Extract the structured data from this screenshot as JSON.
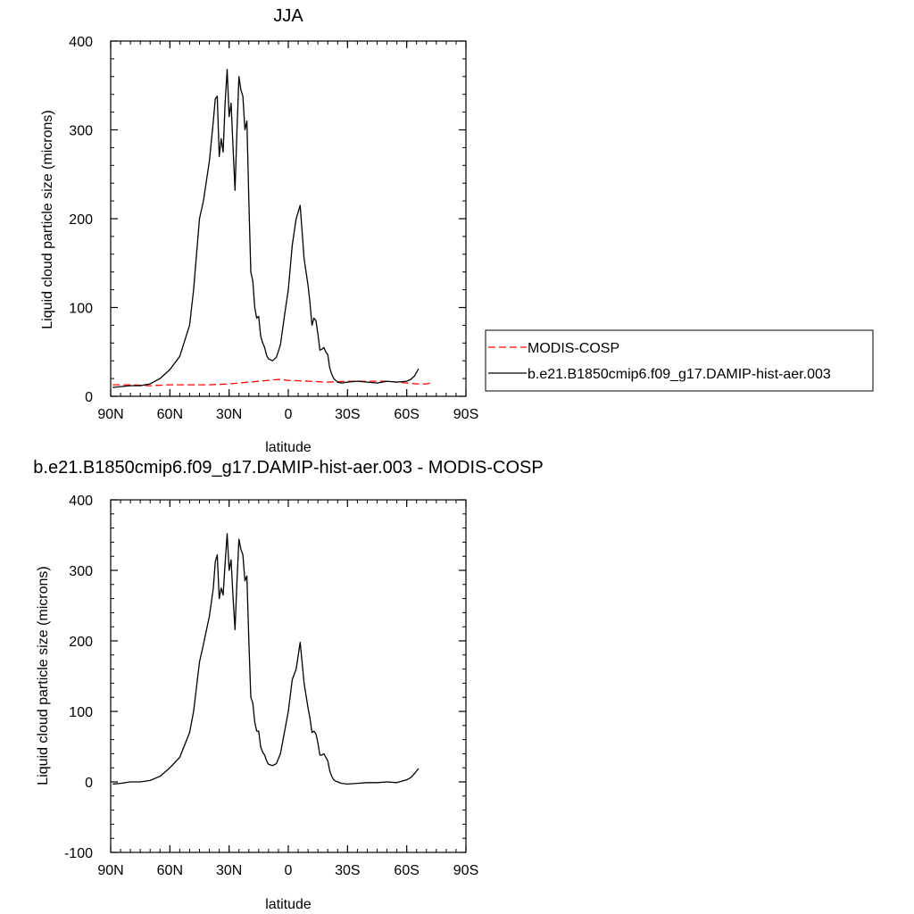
{
  "chart_data": [
    {
      "type": "line",
      "title": "JJA",
      "xlabel": "latitude",
      "ylabel": "Liquid cloud particle size (microns)",
      "xlim": [
        90,
        -90
      ],
      "ylim": [
        0,
        400
      ],
      "xticks": [
        90,
        60,
        30,
        0,
        -30,
        -60,
        -90
      ],
      "xtick_labels": [
        "90N",
        "60N",
        "30N",
        "0",
        "30S",
        "60S",
        "90S"
      ],
      "yticks": [
        0,
        100,
        200,
        300,
        400
      ],
      "ytick_labels": [
        "0",
        "100",
        "200",
        "300",
        "400"
      ],
      "grid": false,
      "legend": {
        "position": "right",
        "entries": [
          {
            "label": "MODIS-COSP",
            "color": "#ff0000",
            "style": "dashed"
          },
          {
            "label": "b.e21.B1850cmip6.f09_g17.DAMIP-hist-aer.003",
            "color": "#000000",
            "style": "solid"
          }
        ]
      },
      "series": [
        {
          "name": "MODIS-COSP",
          "color": "#ff0000",
          "style": "dashed",
          "x": [
            89,
            80,
            70,
            60,
            50,
            40,
            30,
            20,
            15,
            10,
            5,
            0,
            -10,
            -20,
            -30,
            -40,
            -50,
            -60,
            -65,
            -68,
            -70,
            -72
          ],
          "y": [
            13,
            13,
            12,
            13,
            13,
            13,
            14,
            16,
            17,
            18,
            19,
            18,
            17,
            16,
            17,
            17,
            17,
            15,
            14,
            14,
            14,
            15
          ]
        },
        {
          "name": "b.e21.B1850cmip6.f09_g17.DAMIP-hist-aer.003",
          "color": "#000000",
          "style": "solid",
          "x": [
            89,
            80,
            75,
            70,
            65,
            60,
            55,
            50,
            48,
            45,
            43,
            40,
            38,
            37,
            36,
            35,
            34,
            33,
            32,
            31,
            30,
            29,
            28,
            27,
            26,
            25,
            24,
            23,
            22,
            21,
            20,
            19,
            18,
            17,
            16,
            15,
            14,
            13,
            12,
            11,
            10,
            8,
            6,
            4,
            2,
            0,
            -2,
            -4,
            -6,
            -8,
            -10,
            -11,
            -12,
            -13,
            -14,
            -15,
            -16,
            -17,
            -18,
            -19,
            -20,
            -21,
            -22,
            -23,
            -24,
            -25,
            -27,
            -30,
            -35,
            -40,
            -45,
            -50,
            -55,
            -60,
            -62,
            -64,
            -66
          ],
          "y": [
            10,
            12,
            12,
            14,
            20,
            30,
            45,
            80,
            120,
            200,
            220,
            265,
            310,
            335,
            338,
            270,
            290,
            275,
            330,
            368,
            315,
            330,
            280,
            232,
            300,
            360,
            345,
            338,
            300,
            310,
            220,
            140,
            130,
            100,
            88,
            90,
            68,
            60,
            55,
            46,
            42,
            40,
            44,
            58,
            90,
            120,
            170,
            200,
            215,
            155,
            125,
            105,
            80,
            88,
            85,
            70,
            52,
            53,
            55,
            50,
            47,
            32,
            25,
            20,
            18,
            16,
            15,
            16,
            17,
            16,
            15,
            17,
            16,
            17,
            19,
            23,
            31
          ]
        }
      ]
    },
    {
      "type": "line",
      "title": "b.e21.B1850cmip6.f09_g17.DAMIP-hist-aer.003 - MODIS-COSP",
      "xlabel": "latitude",
      "ylabel": "Liquid cloud particle size (microns)",
      "xlim": [
        90,
        -90
      ],
      "ylim": [
        -100,
        400
      ],
      "xticks": [
        90,
        60,
        30,
        0,
        -30,
        -60,
        -90
      ],
      "xtick_labels": [
        "90N",
        "60N",
        "30N",
        "0",
        "30S",
        "60S",
        "90S"
      ],
      "yticks": [
        -100,
        0,
        100,
        200,
        300,
        400
      ],
      "ytick_labels": [
        "-100",
        "0",
        "100",
        "200",
        "300",
        "400"
      ],
      "grid": false,
      "series": [
        {
          "name": "",
          "color": "#000000",
          "style": "solid",
          "x": [
            89,
            85,
            80,
            75,
            70,
            65,
            60,
            55,
            50,
            48,
            45,
            43,
            40,
            38,
            37,
            36,
            35,
            34,
            33,
            32,
            31,
            30,
            29,
            28,
            27,
            26,
            25,
            24,
            23,
            22,
            21,
            20,
            19,
            18,
            17,
            16,
            15,
            14,
            13,
            12,
            11,
            10,
            8,
            6,
            4,
            2,
            0,
            -2,
            -4,
            -6,
            -8,
            -10,
            -11,
            -12,
            -13,
            -14,
            -15,
            -16,
            -17,
            -18,
            -19,
            -20,
            -21,
            -22,
            -23,
            -24,
            -25,
            -27,
            -30,
            -35,
            -40,
            -45,
            -50,
            -55,
            -60,
            -62,
            -64,
            -66
          ],
          "y": [
            -3,
            -2,
            0,
            0,
            2,
            8,
            20,
            35,
            70,
            100,
            170,
            195,
            235,
            275,
            312,
            322,
            260,
            275,
            265,
            310,
            352,
            300,
            315,
            262,
            216,
            285,
            344,
            330,
            322,
            285,
            292,
            200,
            120,
            112,
            85,
            72,
            72,
            50,
            42,
            38,
            30,
            25,
            23,
            26,
            40,
            70,
            100,
            145,
            160,
            198,
            140,
            105,
            90,
            70,
            72,
            68,
            55,
            38,
            38,
            40,
            35,
            30,
            16,
            8,
            3,
            1,
            0,
            -2,
            -3,
            -2,
            -1,
            -1,
            0,
            -1,
            3,
            6,
            12,
            19
          ]
        }
      ]
    }
  ]
}
